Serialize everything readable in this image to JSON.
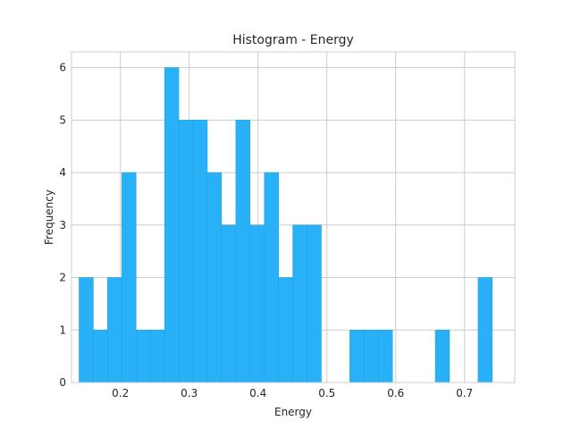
{
  "chart_data": {
    "type": "bar",
    "title": "Histogram - Energy",
    "xlabel": "Energy",
    "ylabel": "Frequency",
    "xlim": [
      0.129,
      0.773
    ],
    "ylim": [
      0,
      6.3
    ],
    "x_ticks": [
      0.2,
      0.3,
      0.4,
      0.5,
      0.6,
      0.7
    ],
    "x_tick_labels": [
      "0.2",
      "0.3",
      "0.4",
      "0.5",
      "0.6",
      "0.7"
    ],
    "y_ticks": [
      0,
      1,
      2,
      3,
      4,
      5,
      6
    ],
    "y_tick_labels": [
      "0",
      "1",
      "2",
      "3",
      "4",
      "5",
      "6"
    ],
    "grid": true,
    "bar_color": "#29b1f8",
    "bin_start": 0.14,
    "bin_width": 0.0207,
    "values": [
      2,
      1,
      2,
      4,
      1,
      1,
      6,
      5,
      5,
      4,
      3,
      5,
      3,
      4,
      2,
      3,
      3,
      0,
      0,
      1,
      1,
      1,
      0,
      0,
      0,
      1,
      0,
      0,
      2
    ]
  }
}
